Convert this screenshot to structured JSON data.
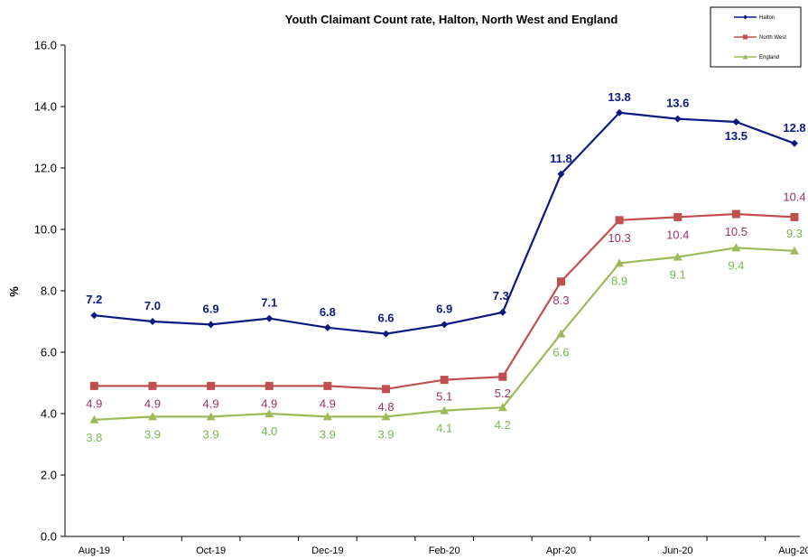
{
  "chart_data": {
    "type": "line",
    "title": "Youth Claimant Count rate, Halton, North West and England",
    "ylabel": "%",
    "xlabel": "",
    "ylim": [
      0,
      16
    ],
    "yticks": [
      "0.0",
      "2.0",
      "4.0",
      "6.0",
      "8.0",
      "10.0",
      "12.0",
      "14.0",
      "16.0"
    ],
    "categories": [
      "Aug-19",
      "Sep-19",
      "Oct-19",
      "Nov-19",
      "Dec-19",
      "Jan-20",
      "Feb-20",
      "Mar-20",
      "Apr-20",
      "May-20",
      "Jun-20",
      "Jul-20",
      "Aug-20"
    ],
    "xtick_labels": [
      "Aug-19",
      "",
      "Oct-19",
      "",
      "Dec-19",
      "",
      "Feb-20",
      "",
      "Apr-20",
      "",
      "Jun-20",
      "",
      "Aug-20"
    ],
    "grid": false,
    "legend_position": "top-right",
    "series": [
      {
        "name": "Halton",
        "color": "#0a1a80",
        "label_color": "#0a1a80",
        "marker": "diamond",
        "values": [
          7.2,
          7.0,
          6.9,
          7.1,
          6.8,
          6.6,
          6.9,
          7.3,
          11.8,
          13.8,
          13.6,
          13.5,
          12.8
        ],
        "labels": [
          "7.2",
          "7.0",
          "6.9",
          "7.1",
          "6.8",
          "6.6",
          "6.9",
          "7.3",
          "11.8",
          "13.8",
          "13.6",
          "13.5",
          "12.8"
        ]
      },
      {
        "name": "North West",
        "color": "#c0504d",
        "label_color": "#993366",
        "marker": "square",
        "values": [
          4.9,
          4.9,
          4.9,
          4.9,
          4.9,
          4.8,
          5.1,
          5.2,
          8.3,
          10.3,
          10.4,
          10.5,
          10.4
        ],
        "labels": [
          "4.9",
          "4.9",
          "4.9",
          "4.9",
          "4.9",
          "4.8",
          "5.1",
          "5.2",
          "8.3",
          "10.3",
          "10.4",
          "10.5",
          "10.4"
        ]
      },
      {
        "name": "England",
        "color": "#9bbb59",
        "label_color": "#77b654",
        "marker": "triangle",
        "values": [
          3.8,
          3.9,
          3.9,
          4.0,
          3.9,
          3.9,
          4.1,
          4.2,
          6.6,
          8.9,
          9.1,
          9.4,
          9.3
        ],
        "labels": [
          "3.8",
          "3.9",
          "3.9",
          "4.0",
          "3.9",
          "3.9",
          "4.1",
          "4.2",
          "6.6",
          "8.9",
          "9.1",
          "9.4",
          "9.3"
        ]
      }
    ]
  }
}
